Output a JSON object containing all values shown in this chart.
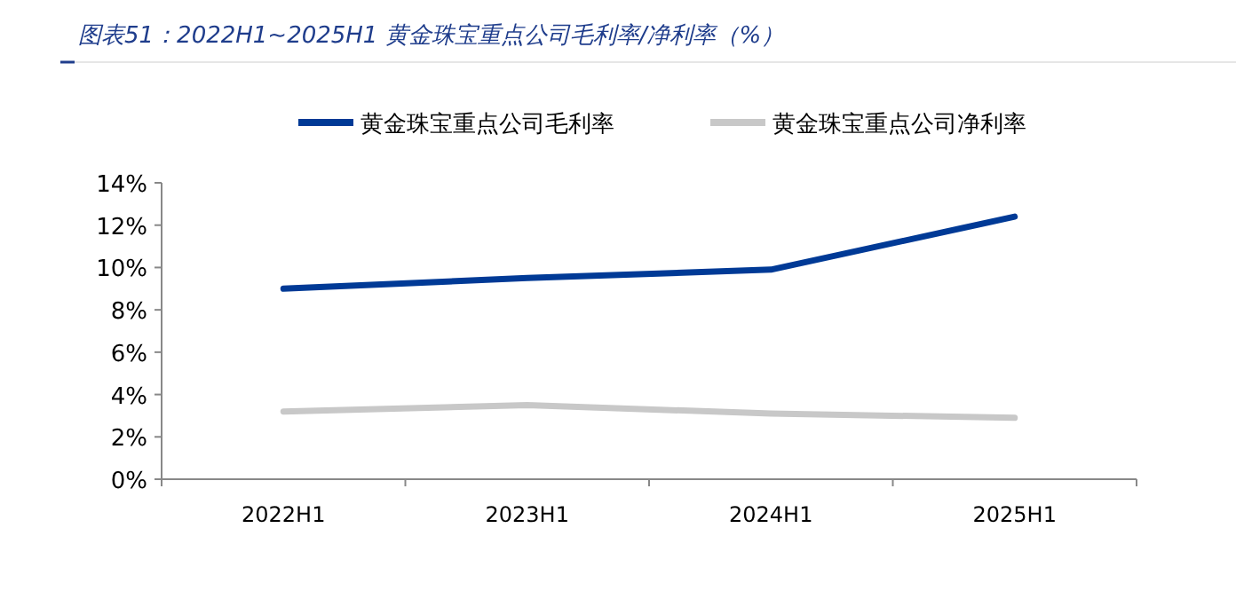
{
  "chart_data": {
    "type": "line",
    "title": "图表51：2022H1~2025H1 黄金珠宝重点公司毛利率/净利率（%）",
    "categories": [
      "2022H1",
      "2023H1",
      "2024H1",
      "2025H1"
    ],
    "series": [
      {
        "name": "黄金珠宝重点公司毛利率",
        "color": "#003a96",
        "values": [
          9.0,
          9.5,
          9.9,
          12.4
        ]
      },
      {
        "name": "黄金珠宝重点公司净利率",
        "color": "#c8c8c8",
        "values": [
          3.2,
          3.5,
          3.1,
          2.9
        ]
      }
    ],
    "ylim": [
      0,
      14
    ],
    "yticks": [
      {
        "value": 0,
        "label": "0%"
      },
      {
        "value": 2,
        "label": "2%"
      },
      {
        "value": 4,
        "label": "4%"
      },
      {
        "value": 6,
        "label": "6%"
      },
      {
        "value": 8,
        "label": "8%"
      },
      {
        "value": 10,
        "label": "10%"
      },
      {
        "value": 12,
        "label": "12%"
      },
      {
        "value": 14,
        "label": "14%"
      }
    ],
    "legend": "top",
    "grid": false,
    "marker": "none",
    "line_style": "solid"
  }
}
